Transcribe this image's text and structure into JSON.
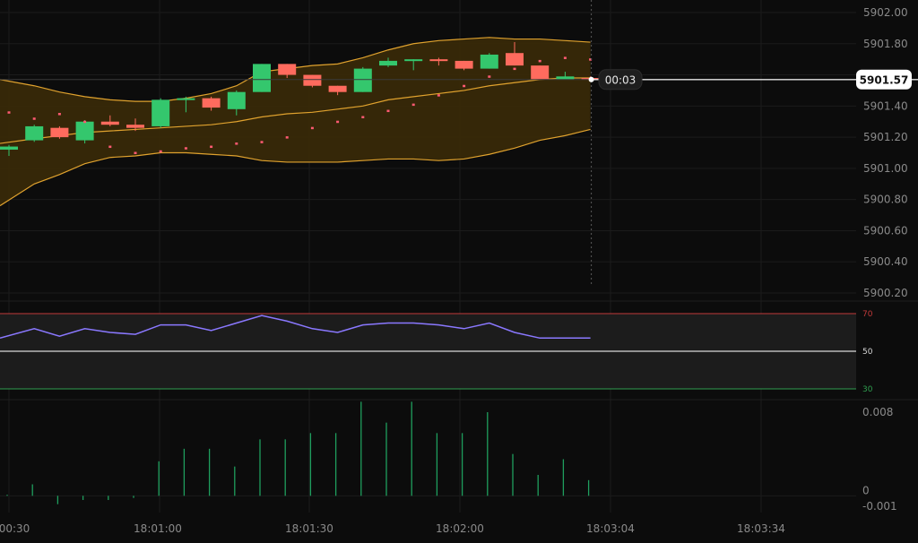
{
  "chart_data": {
    "type": "candlestick",
    "title": "",
    "price_axis": {
      "ticks": [
        "5902.00",
        "5901.80",
        "5901.60",
        "5901.40",
        "5901.20",
        "5901.00",
        "5900.80",
        "5900.60",
        "5900.40",
        "5900.20"
      ],
      "ylim": [
        5900.2,
        5902.0
      ]
    },
    "time_axis": {
      "ticks": [
        "00:30",
        "18:01:00",
        "18:01:30",
        "18:02:00",
        "18:03:04",
        "18:03:34"
      ]
    },
    "last_price": "5901.57",
    "countdown": "00:03",
    "candles": [
      {
        "o": 5901.12,
        "h": 5901.15,
        "l": 5901.08,
        "c": 5901.14,
        "bull": true
      },
      {
        "o": 5901.18,
        "h": 5901.28,
        "l": 5901.17,
        "c": 5901.27,
        "bull": true
      },
      {
        "o": 5901.26,
        "h": 5901.27,
        "l": 5901.19,
        "c": 5901.2,
        "bull": false
      },
      {
        "o": 5901.18,
        "h": 5901.31,
        "l": 5901.16,
        "c": 5901.3,
        "bull": true
      },
      {
        "o": 5901.3,
        "h": 5901.34,
        "l": 5901.27,
        "c": 5901.28,
        "bull": false
      },
      {
        "o": 5901.28,
        "h": 5901.32,
        "l": 5901.24,
        "c": 5901.26,
        "bull": false
      },
      {
        "o": 5901.27,
        "h": 5901.45,
        "l": 5901.26,
        "c": 5901.44,
        "bull": true
      },
      {
        "o": 5901.44,
        "h": 5901.46,
        "l": 5901.36,
        "c": 5901.45,
        "bull": true
      },
      {
        "o": 5901.45,
        "h": 5901.46,
        "l": 5901.37,
        "c": 5901.39,
        "bull": false
      },
      {
        "o": 5901.38,
        "h": 5901.5,
        "l": 5901.34,
        "c": 5901.49,
        "bull": true
      },
      {
        "o": 5901.49,
        "h": 5901.67,
        "l": 5901.49,
        "c": 5901.67,
        "bull": true
      },
      {
        "o": 5901.67,
        "h": 5901.67,
        "l": 5901.58,
        "c": 5901.6,
        "bull": false
      },
      {
        "o": 5901.6,
        "h": 5901.6,
        "l": 5901.52,
        "c": 5901.53,
        "bull": false
      },
      {
        "o": 5901.53,
        "h": 5901.53,
        "l": 5901.47,
        "c": 5901.49,
        "bull": false
      },
      {
        "o": 5901.49,
        "h": 5901.65,
        "l": 5901.49,
        "c": 5901.64,
        "bull": true
      },
      {
        "o": 5901.66,
        "h": 5901.71,
        "l": 5901.65,
        "c": 5901.69,
        "bull": true
      },
      {
        "o": 5901.69,
        "h": 5901.7,
        "l": 5901.63,
        "c": 5901.7,
        "bull": true
      },
      {
        "o": 5901.7,
        "h": 5901.71,
        "l": 5901.66,
        "c": 5901.69,
        "bull": false
      },
      {
        "o": 5901.69,
        "h": 5901.69,
        "l": 5901.63,
        "c": 5901.64,
        "bull": false
      },
      {
        "o": 5901.64,
        "h": 5901.74,
        "l": 5901.64,
        "c": 5901.73,
        "bull": true
      },
      {
        "o": 5901.74,
        "h": 5901.81,
        "l": 5901.66,
        "c": 5901.66,
        "bull": false
      },
      {
        "o": 5901.66,
        "h": 5901.66,
        "l": 5901.57,
        "c": 5901.57,
        "bull": false
      },
      {
        "o": 5901.57,
        "h": 5901.62,
        "l": 5901.57,
        "c": 5901.59,
        "bull": true
      },
      {
        "o": 5901.58,
        "h": 5901.59,
        "l": 5901.56,
        "c": 5901.57,
        "bull": false
      }
    ],
    "bollinger": {
      "upper": [
        5901.57,
        5901.53,
        5901.49,
        5901.46,
        5901.44,
        5901.43,
        5901.43,
        5901.45,
        5901.48,
        5901.53,
        5901.62,
        5901.64,
        5901.66,
        5901.67,
        5901.71,
        5901.76,
        5901.8,
        5901.82,
        5901.83,
        5901.84,
        5901.83,
        5901.83,
        5901.82,
        5901.81
      ],
      "middle": [
        5901.16,
        5901.19,
        5901.21,
        5901.23,
        5901.24,
        5901.25,
        5901.26,
        5901.27,
        5901.28,
        5901.3,
        5901.33,
        5901.35,
        5901.36,
        5901.38,
        5901.4,
        5901.44,
        5901.46,
        5901.48,
        5901.5,
        5901.53,
        5901.55,
        5901.57,
        5901.58,
        5901.58
      ],
      "lower": [
        5900.76,
        5900.9,
        5900.96,
        5901.03,
        5901.07,
        5901.08,
        5901.1,
        5901.1,
        5901.09,
        5901.08,
        5901.05,
        5901.04,
        5901.04,
        5901.04,
        5901.05,
        5901.06,
        5901.06,
        5901.05,
        5901.06,
        5901.09,
        5901.13,
        5901.18,
        5901.21,
        5901.25
      ]
    },
    "sar_markers": [
      5901.36,
      5901.32,
      5901.35,
      5901.3,
      5901.14,
      5901.1,
      5901.11,
      5901.13,
      5901.14,
      5901.16,
      5901.17,
      5901.2,
      5901.26,
      5901.3,
      5901.33,
      5901.37,
      5901.41,
      5901.47,
      5901.53,
      5901.59,
      5901.64,
      5901.69,
      5901.71,
      5901.7
    ],
    "rsi": {
      "levels": {
        "upper": "70",
        "middle": "50",
        "lower": "30"
      },
      "values": [
        57,
        62,
        58,
        62,
        60,
        59,
        64,
        64,
        61,
        65,
        69,
        66,
        62,
        60,
        64,
        65,
        65,
        64,
        62,
        65,
        60,
        57,
        57,
        57
      ]
    },
    "volume": {
      "ticks": [
        "0.008",
        "0",
        "-0.001"
      ],
      "ylim": [
        -0.001,
        0.008
      ],
      "values": [
        0.0001,
        0.0011,
        -0.0008,
        -0.0004,
        -0.0004,
        -0.0002,
        0.0033,
        0.0045,
        0.0045,
        0.0028,
        0.0054,
        0.0054,
        0.006,
        0.006,
        0.009,
        0.007,
        0.009,
        0.006,
        0.006,
        0.008,
        0.004,
        0.002,
        0.0035,
        0.0015
      ]
    },
    "colors": {
      "bull": "#34c76d",
      "bull_vol": "#1f9f5e",
      "bear": "#ff6b5e",
      "band_fill": "#3a2a08",
      "band_line": "#e0a22e",
      "rsi_line": "#8a78ff",
      "rsi_upper": "#c23a3a",
      "rsi_lower": "#2f9e4f",
      "sar": "#ff5a72"
    },
    "grid": true
  }
}
